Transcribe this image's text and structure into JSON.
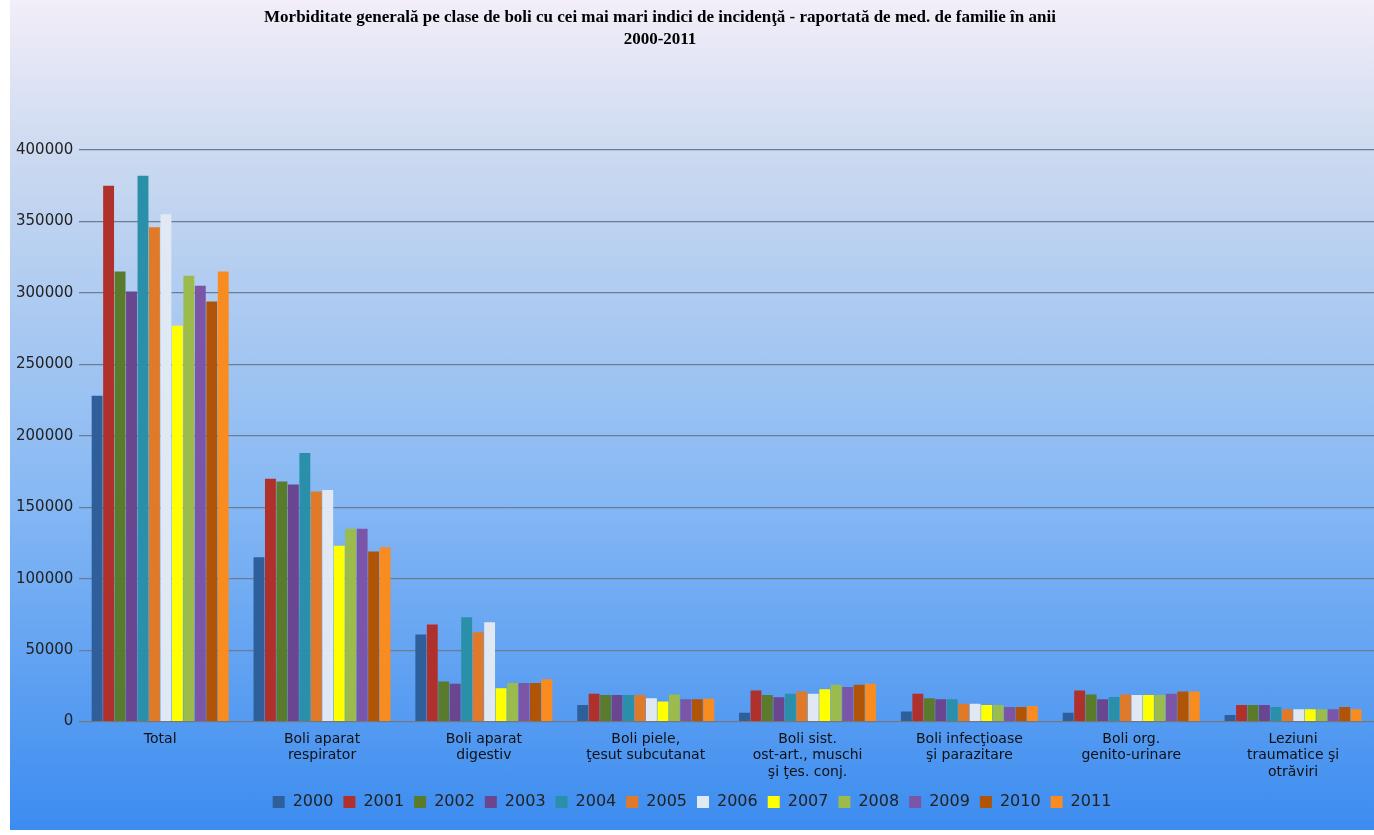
{
  "chart_data": {
    "type": "bar",
    "title": "Morbiditate  generală pe clase de boli cu cei mai mari indici de incidenţă - raportată  de med. de familie în anii 2000-2011",
    "categories": [
      "Total",
      "Boli aparat respirator",
      "Boli aparat digestiv",
      "Boli piele, ţesut subcutanat",
      "Boli sist. ost-art., muschi şi ţes. conj.",
      "Boli infecţioase şi parazitare",
      "Boli org. genito-urinare",
      "Leziuni traumatice şi otrăviri"
    ],
    "series": [
      {
        "name": "2000",
        "color": "#2e5f9a",
        "values": [
          228000,
          115000,
          61000,
          11700,
          6200,
          7000,
          6200,
          4700
        ]
      },
      {
        "name": "2001",
        "color": "#b0302c",
        "values": [
          375000,
          170000,
          68000,
          19500,
          21800,
          19500,
          21800,
          11700
        ]
      },
      {
        "name": "2002",
        "color": "#5a7a2c",
        "values": [
          315000,
          168000,
          28000,
          18700,
          18700,
          16400,
          19000,
          11700
        ]
      },
      {
        "name": "2003",
        "color": "#6a4590",
        "values": [
          301000,
          166000,
          26500,
          18700,
          17000,
          15600,
          15600,
          11700
        ]
      },
      {
        "name": "2004",
        "color": "#2a8fa8",
        "values": [
          382000,
          188000,
          73000,
          18700,
          19500,
          15600,
          17200,
          10200
        ]
      },
      {
        "name": "2005",
        "color": "#e07a28",
        "values": [
          346000,
          161000,
          62500,
          18700,
          21000,
          12500,
          19000,
          8600
        ]
      },
      {
        "name": "2006",
        "color": "#e0e8f4",
        "values": [
          355000,
          162000,
          69500,
          16400,
          19500,
          12500,
          18700,
          8600
        ]
      },
      {
        "name": "2007",
        "color": "#ffff00",
        "values": [
          277000,
          123000,
          23400,
          14000,
          22600,
          11700,
          18700,
          8600
        ]
      },
      {
        "name": "2008",
        "color": "#9bbb4c",
        "values": [
          312000,
          135000,
          27000,
          19000,
          25800,
          11700,
          18700,
          8600
        ]
      },
      {
        "name": "2009",
        "color": "#7b55a8",
        "values": [
          305000,
          135000,
          27000,
          15600,
          24200,
          10200,
          19500,
          8600
        ]
      },
      {
        "name": "2010",
        "color": "#b05408",
        "values": [
          294000,
          119000,
          27000,
          15600,
          25800,
          10200,
          21000,
          10200
        ]
      },
      {
        "name": "2011",
        "color": "#f88c20",
        "values": [
          315000,
          122000,
          29700,
          16000,
          26500,
          11000,
          21000,
          8600
        ]
      }
    ],
    "ylim": [
      0,
      400000
    ],
    "yticks": [
      0,
      50000,
      100000,
      150000,
      200000,
      250000,
      300000,
      350000,
      400000
    ],
    "grid": "y",
    "legend": "bottom"
  }
}
